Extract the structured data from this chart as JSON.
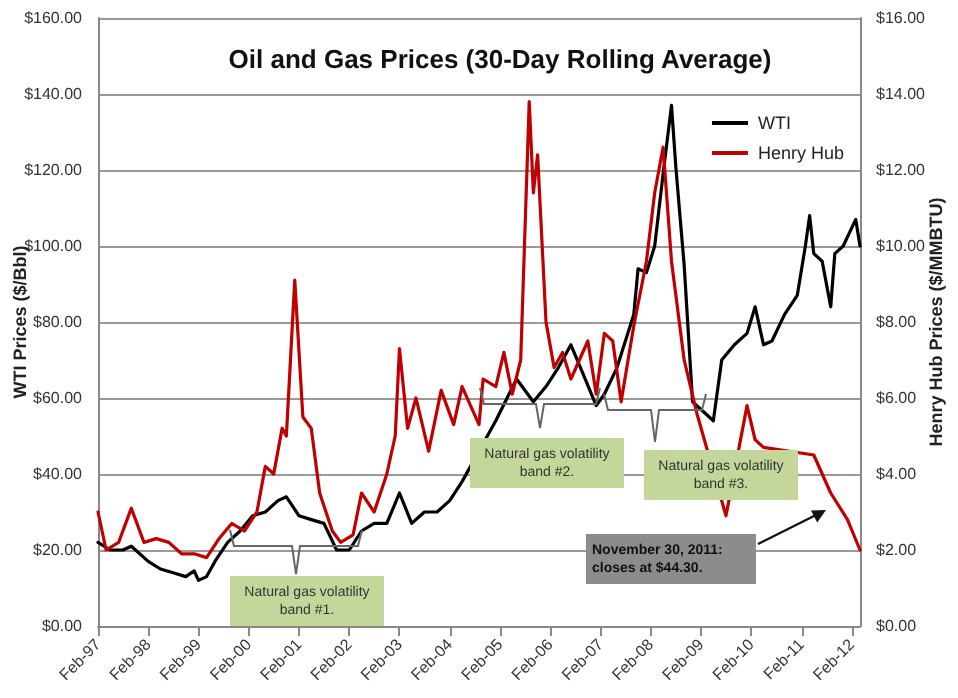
{
  "chart_data": {
    "type": "line",
    "title": "Oil and Gas Prices (30-Day Rolling Average)",
    "ylabel": "WTI Prices ($/Bbl)",
    "y2label": "Henry Hub Prices ($/MMBTU)",
    "xlim": [
      "1997-02",
      "2012-04"
    ],
    "xticks": [
      {
        "value": "1997-02",
        "label": "Feb-97"
      },
      {
        "value": "1998-02",
        "label": "Feb-98"
      },
      {
        "value": "1999-02",
        "label": "Feb-99"
      },
      {
        "value": "2000-02",
        "label": "Feb-00"
      },
      {
        "value": "2001-02",
        "label": "Feb-01"
      },
      {
        "value": "2002-02",
        "label": "Feb-02"
      },
      {
        "value": "2003-02",
        "label": "Feb-03"
      },
      {
        "value": "2004-02",
        "label": "Feb-04"
      },
      {
        "value": "2005-02",
        "label": "Feb-05"
      },
      {
        "value": "2006-02",
        "label": "Feb-06"
      },
      {
        "value": "2007-02",
        "label": "Feb-07"
      },
      {
        "value": "2008-02",
        "label": "Feb-08"
      },
      {
        "value": "2009-02",
        "label": "Feb-09"
      },
      {
        "value": "2010-02",
        "label": "Feb-10"
      },
      {
        "value": "2011-02",
        "label": "Feb-11"
      },
      {
        "value": "2012-02",
        "label": "Feb-12"
      }
    ],
    "ylim": [
      0,
      160
    ],
    "yticks": [
      {
        "value": 0,
        "label": "$0.00"
      },
      {
        "value": 20,
        "label": "$20.00"
      },
      {
        "value": 40,
        "label": "$40.00"
      },
      {
        "value": 60,
        "label": "$60.00"
      },
      {
        "value": 80,
        "label": "$80.00"
      },
      {
        "value": 100,
        "label": "$100.00"
      },
      {
        "value": 120,
        "label": "$120.00"
      },
      {
        "value": 140,
        "label": "$140.00"
      },
      {
        "value": 160,
        "label": "$160.00"
      }
    ],
    "y2lim": [
      0,
      16
    ],
    "y2ticks": [
      {
        "value": 0,
        "label": "$0.00"
      },
      {
        "value": 2,
        "label": "$2.00"
      },
      {
        "value": 4,
        "label": "$4.00"
      },
      {
        "value": 6,
        "label": "$6.00"
      },
      {
        "value": 8,
        "label": "$8.00"
      },
      {
        "value": 10,
        "label": "$10.00"
      },
      {
        "value": 12,
        "label": "$12.00"
      },
      {
        "value": 14,
        "label": "$14.00"
      },
      {
        "value": 16,
        "label": "$16.00"
      }
    ],
    "grid": "y",
    "legend": "top right",
    "line_style": "solid",
    "series": [
      {
        "name": "WTI",
        "color": "#000000",
        "x": [
          "1997-02",
          "1997-05",
          "1997-08",
          "1997-10",
          "1998-02",
          "1998-05",
          "1998-08",
          "1998-11",
          "1999-01",
          "1999-02",
          "1999-04",
          "1999-06",
          "1999-09",
          "1999-12",
          "2000-03",
          "2000-06",
          "2000-09",
          "2000-11",
          "2001-02",
          "2001-05",
          "2001-08",
          "2001-11",
          "2002-02",
          "2002-05",
          "2002-08",
          "2002-11",
          "2003-02",
          "2003-05",
          "2003-08",
          "2003-11",
          "2004-02",
          "2004-05",
          "2004-08",
          "2004-09",
          "2005-01",
          "2005-06",
          "2005-10",
          "2006-01",
          "2006-04",
          "2006-07",
          "2006-10",
          "2007-01",
          "2007-03",
          "2007-06",
          "2007-10",
          "2007-11",
          "2008-01",
          "2008-03",
          "2008-05",
          "2008-07",
          "2008-08",
          "2008-10",
          "2008-12",
          "2009-02",
          "2009-05",
          "2009-07",
          "2009-10",
          "2010-01",
          "2010-03",
          "2010-05",
          "2010-07",
          "2010-10",
          "2011-01",
          "2011-03",
          "2011-04",
          "2011-05",
          "2011-07",
          "2011-09",
          "2011-10",
          "2011-12",
          "2012-03",
          "2012-04"
        ],
        "values": [
          22,
          20,
          20,
          21,
          17,
          15,
          14,
          13,
          14.5,
          12,
          13,
          17,
          22,
          25,
          29,
          30,
          33,
          34,
          29,
          28,
          27,
          20,
          20,
          25,
          27,
          27,
          35,
          27,
          30,
          30,
          33,
          38,
          null,
          null,
          54,
          65,
          59,
          63,
          68,
          74,
          66,
          58,
          61,
          68,
          82,
          94,
          93,
          100,
          119,
          137,
          121,
          95,
          59,
          null,
          54,
          70,
          74,
          77,
          84,
          74,
          75,
          82,
          87,
          100,
          108,
          98,
          96,
          84,
          98,
          100,
          107,
          100
        ]
      },
      {
        "name": "Henry Hub",
        "color": "#c00000",
        "axis": "y2",
        "x": [
          "1997-02",
          "1997-04",
          "1997-07",
          "1997-10",
          "1998-01",
          "1998-04",
          "1998-07",
          "1998-10",
          "1999-01",
          "1999-04",
          "1999-07",
          "1999-10",
          "2000-01",
          "2000-04",
          "2000-06",
          "2000-08",
          "2000-10",
          "2000-11",
          "2001-01",
          "2001-03",
          "2001-05",
          "2001-07",
          "2001-10",
          "2001-12",
          "2002-03",
          "2002-05",
          "2002-08",
          "2002-11",
          "2003-01",
          "2003-02",
          "2003-04",
          "2003-06",
          "2003-09",
          "2003-12",
          "2004-03",
          "2004-05",
          "2004-09",
          "2004-10",
          "2005-01",
          "2005-03",
          "2005-05",
          "2005-07",
          "2005-09",
          "2005-10",
          "2005-11",
          "2006-01",
          "2006-03",
          "2006-05",
          "2006-07",
          "2006-09",
          "2006-11",
          "2007-01",
          "2007-03",
          "2007-05",
          "2007-07",
          "2007-10",
          "2008-01",
          "2008-03",
          "2008-05",
          "2008-07",
          "2008-10",
          "2009-01",
          "2009-03",
          "2009-08",
          "2009-10",
          "2010-01",
          "2010-03",
          "2010-05",
          "2010-09",
          "2011-01",
          "2011-05",
          "2011-09",
          "2012-01",
          "2012-04"
        ],
        "values": [
          3.0,
          2.0,
          2.2,
          3.1,
          2.2,
          2.3,
          2.2,
          1.9,
          1.9,
          1.8,
          2.3,
          2.7,
          2.5,
          3.0,
          4.2,
          4.0,
          5.2,
          5.0,
          9.1,
          5.5,
          5.2,
          3.5,
          2.5,
          2.2,
          2.4,
          3.5,
          3.0,
          4.0,
          5.0,
          7.3,
          5.2,
          6.0,
          4.6,
          6.2,
          5.3,
          6.3,
          5.3,
          6.5,
          6.3,
          7.2,
          6.1,
          7.0,
          13.8,
          11.4,
          12.4,
          8.0,
          6.8,
          7.2,
          6.5,
          null,
          7.5,
          6.1,
          7.7,
          7.5,
          5.9,
          7.9,
          9.6,
          11.4,
          12.6,
          9.6,
          7.0,
          5.6,
          null,
          2.9,
          null,
          5.8,
          4.9,
          4.7,
          null,
          null,
          4.5,
          3.5,
          2.8,
          2.0
        ]
      }
    ],
    "annotations": [
      "Natural gas volatility band #1.",
      "Natural gas volatility band #2.",
      "Natural gas volatility band #3.",
      "November 30, 2011: closes at $44.30."
    ]
  }
}
